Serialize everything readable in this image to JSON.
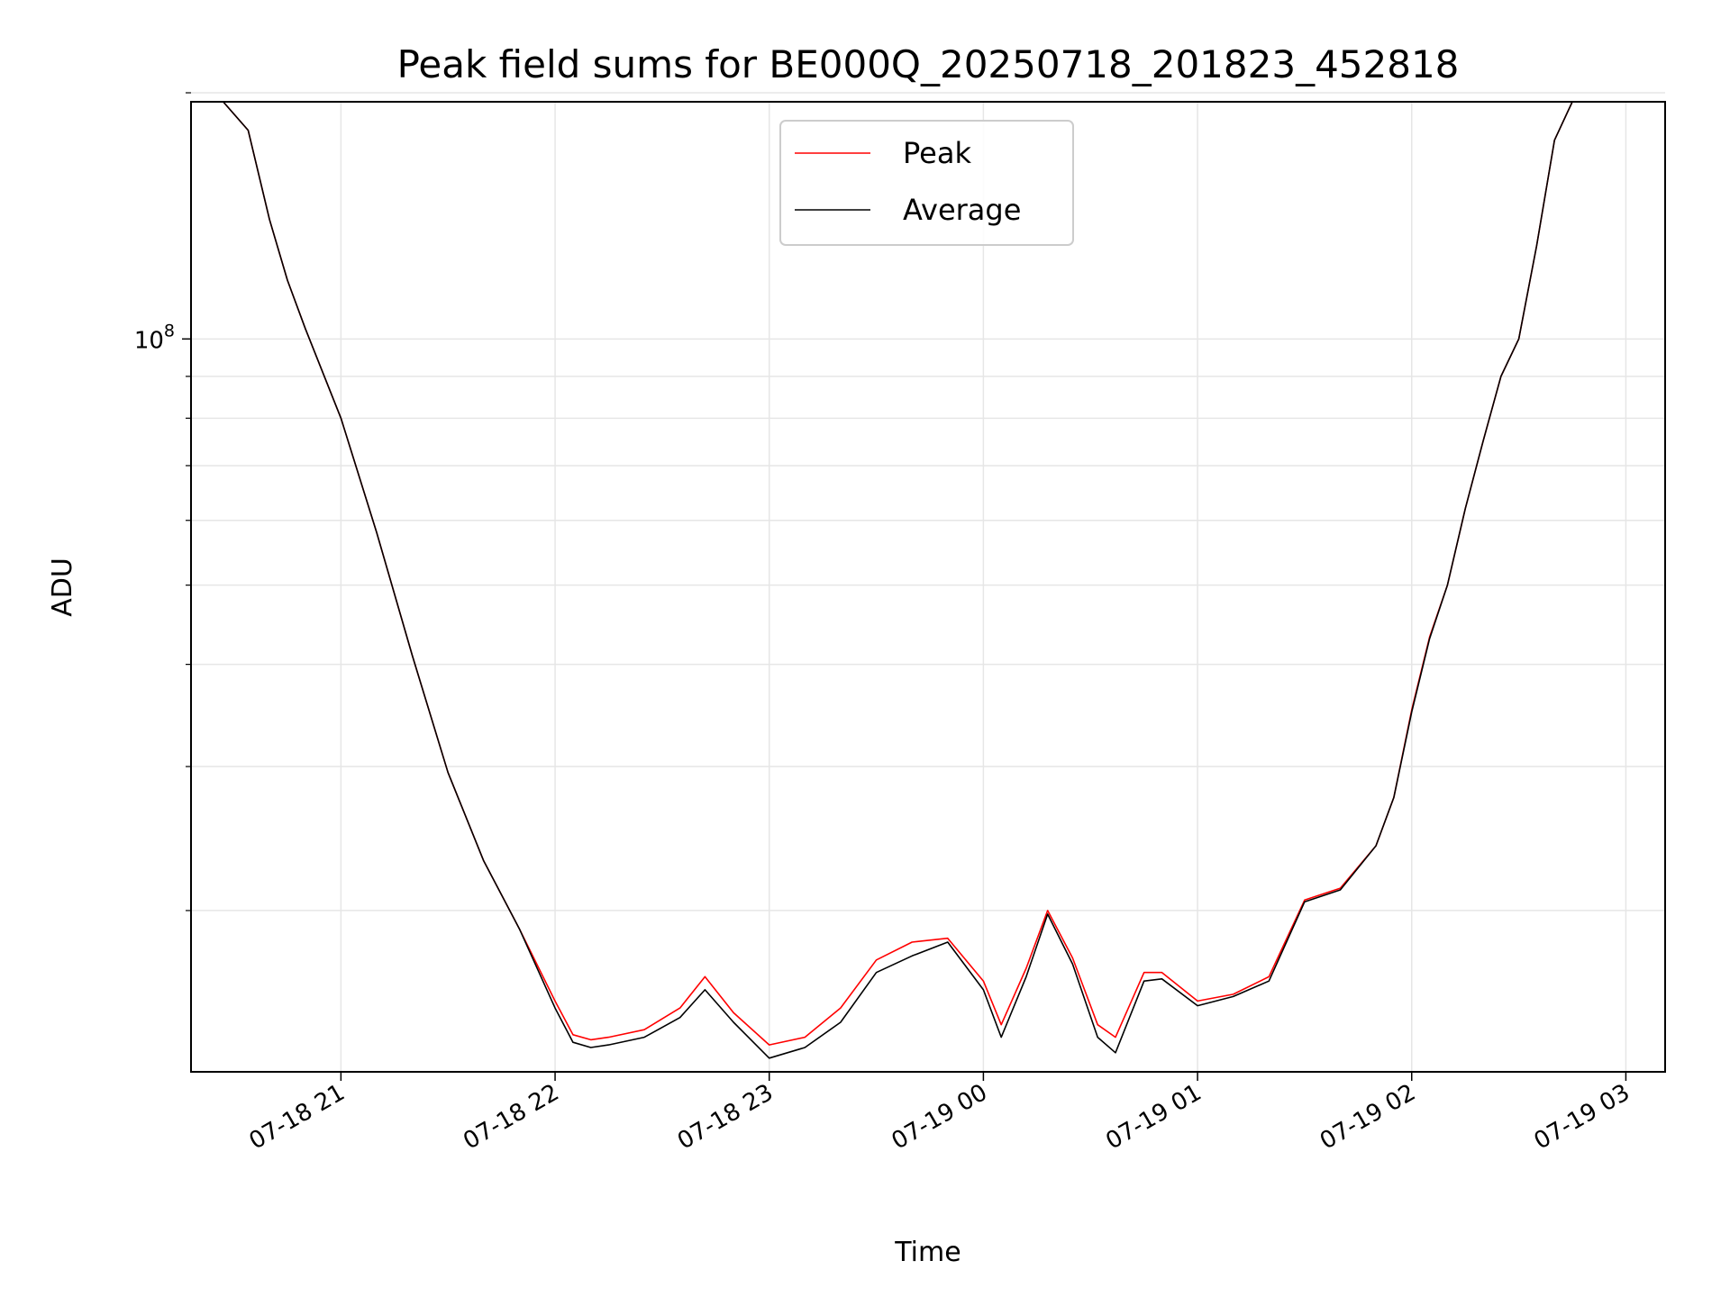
{
  "chart_data": {
    "type": "line",
    "title": "Peak field sums for BE000Q_20250718_201823_452818",
    "xlabel": "Time",
    "ylabel": "ADU",
    "y_scale": "log",
    "ylim": [
      12700000,
      195000000
    ],
    "y_major_ticks": [
      {
        "value": 100000000,
        "base": "10",
        "exp": "8"
      }
    ],
    "y_minor_ticks": [
      20000000,
      30000000,
      40000000,
      50000000,
      60000000,
      70000000,
      80000000,
      90000000,
      200000000
    ],
    "xlim": [
      "2025-07-18 20:18",
      "2025-07-19 03:11"
    ],
    "x_ticks": [
      {
        "value": "2025-07-18 21:00",
        "label": "07-18 21"
      },
      {
        "value": "2025-07-18 22:00",
        "label": "07-18 22"
      },
      {
        "value": "2025-07-18 23:00",
        "label": "07-18 23"
      },
      {
        "value": "2025-07-19 00:00",
        "label": "07-19 00"
      },
      {
        "value": "2025-07-19 01:00",
        "label": "07-19 01"
      },
      {
        "value": "2025-07-19 02:00",
        "label": "07-19 02"
      },
      {
        "value": "2025-07-19 03:00",
        "label": "07-19 03"
      }
    ],
    "grid": true,
    "legend_position": "upper-center",
    "series": [
      {
        "name": "Peak",
        "color": "#ff0000",
        "x": [
          "2025-07-18 20:18",
          "2025-07-18 20:27",
          "2025-07-18 20:34",
          "2025-07-18 20:40",
          "2025-07-18 20:45",
          "2025-07-18 20:50",
          "2025-07-18 21:00",
          "2025-07-18 21:10",
          "2025-07-18 21:20",
          "2025-07-18 21:30",
          "2025-07-18 21:40",
          "2025-07-18 21:50",
          "2025-07-18 22:00",
          "2025-07-18 22:05",
          "2025-07-18 22:10",
          "2025-07-18 22:15",
          "2025-07-18 22:25",
          "2025-07-18 22:35",
          "2025-07-18 22:42",
          "2025-07-18 22:50",
          "2025-07-18 23:00",
          "2025-07-18 23:10",
          "2025-07-18 23:20",
          "2025-07-18 23:30",
          "2025-07-18 23:40",
          "2025-07-18 23:50",
          "2025-07-19 00:00",
          "2025-07-19 00:05",
          "2025-07-19 00:12",
          "2025-07-19 00:18",
          "2025-07-19 00:25",
          "2025-07-19 00:32",
          "2025-07-19 00:37",
          "2025-07-19 00:45",
          "2025-07-19 00:50",
          "2025-07-19 01:00",
          "2025-07-19 01:10",
          "2025-07-19 01:20",
          "2025-07-19 01:30",
          "2025-07-19 01:40",
          "2025-07-19 01:50",
          "2025-07-19 01:55",
          "2025-07-19 02:00",
          "2025-07-19 02:05",
          "2025-07-19 02:10",
          "2025-07-19 02:15",
          "2025-07-19 02:20",
          "2025-07-19 02:25",
          "2025-07-19 02:30",
          "2025-07-19 02:35",
          "2025-07-19 02:40",
          "2025-07-19 02:45",
          "2025-07-19 02:50"
        ],
        "y": [
          195000000,
          195000000,
          180000000,
          140000000,
          118000000,
          103000000,
          80000000,
          58000000,
          41000000,
          29500000,
          23000000,
          19000000,
          15500000,
          14100000,
          13900000,
          14000000,
          14300000,
          15200000,
          16600000,
          15000000,
          13700000,
          14000000,
          15200000,
          17400000,
          18300000,
          18500000,
          16400000,
          14500000,
          17000000,
          20000000,
          17500000,
          14500000,
          14000000,
          16800000,
          16800000,
          15500000,
          15800000,
          16600000,
          20600000,
          21300000,
          24000000,
          27500000,
          35200000,
          43200000,
          50000000,
          62000000,
          75000000,
          90000000,
          100000000,
          130000000,
          175000000,
          195000000,
          195000000
        ]
      },
      {
        "name": "Average",
        "color": "#000000",
        "x": [
          "2025-07-18 20:18",
          "2025-07-18 20:27",
          "2025-07-18 20:34",
          "2025-07-18 20:40",
          "2025-07-18 20:45",
          "2025-07-18 20:50",
          "2025-07-18 21:00",
          "2025-07-18 21:10",
          "2025-07-18 21:20",
          "2025-07-18 21:30",
          "2025-07-18 21:40",
          "2025-07-18 21:50",
          "2025-07-18 22:00",
          "2025-07-18 22:05",
          "2025-07-18 22:10",
          "2025-07-18 22:15",
          "2025-07-18 22:25",
          "2025-07-18 22:35",
          "2025-07-18 22:42",
          "2025-07-18 22:50",
          "2025-07-18 23:00",
          "2025-07-18 23:10",
          "2025-07-18 23:20",
          "2025-07-18 23:30",
          "2025-07-18 23:40",
          "2025-07-18 23:50",
          "2025-07-19 00:00",
          "2025-07-19 00:05",
          "2025-07-19 00:12",
          "2025-07-19 00:18",
          "2025-07-19 00:25",
          "2025-07-19 00:32",
          "2025-07-19 00:37",
          "2025-07-19 00:45",
          "2025-07-19 00:50",
          "2025-07-19 01:00",
          "2025-07-19 01:10",
          "2025-07-19 01:20",
          "2025-07-19 01:30",
          "2025-07-19 01:40",
          "2025-07-19 01:50",
          "2025-07-19 01:55",
          "2025-07-19 02:00",
          "2025-07-19 02:05",
          "2025-07-19 02:10",
          "2025-07-19 02:15",
          "2025-07-19 02:20",
          "2025-07-19 02:25",
          "2025-07-19 02:30",
          "2025-07-19 02:35",
          "2025-07-19 02:40",
          "2025-07-19 02:45",
          "2025-07-19 02:50"
        ],
        "y": [
          195000000,
          195000000,
          180000000,
          140000000,
          118000000,
          103000000,
          80000000,
          58000000,
          41000000,
          29500000,
          23000000,
          19000000,
          15200000,
          13800000,
          13600000,
          13700000,
          14000000,
          14800000,
          16000000,
          14600000,
          13200000,
          13600000,
          14600000,
          16800000,
          17600000,
          18300000,
          16000000,
          14000000,
          16600000,
          19800000,
          17200000,
          14000000,
          13400000,
          16400000,
          16500000,
          15300000,
          15700000,
          16400000,
          20500000,
          21200000,
          24000000,
          27500000,
          35000000,
          43000000,
          50000000,
          62000000,
          75000000,
          90000000,
          100000000,
          130000000,
          175000000,
          195000000,
          195000000
        ]
      }
    ]
  }
}
